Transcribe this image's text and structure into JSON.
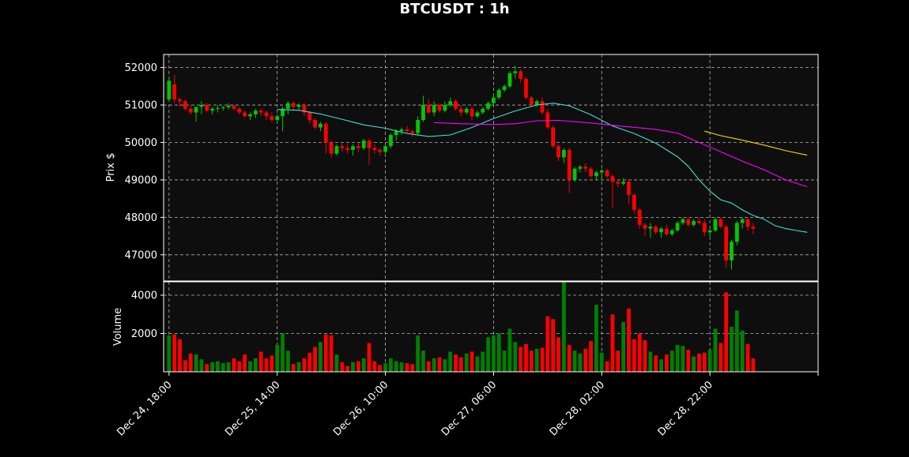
{
  "chart_data": {
    "type": "candlestick",
    "title": "BTCUSDT : 1h",
    "interval": "1h",
    "colors": {
      "up": "#00c800",
      "down": "#ff0000",
      "ma_short": "#40e0d0",
      "ma_mid": "#ff00ff",
      "ma_long": "#ffd700",
      "grid": "#b0b0b0",
      "background": "#0e0e0e"
    },
    "price_panel": {
      "ylabel": "Prix $",
      "ylim": [
        46300,
        52350
      ],
      "yticks": [
        47000,
        48000,
        49000,
        50000,
        51000,
        52000
      ],
      "grid": true
    },
    "volume_panel": {
      "ylabel": "Volume",
      "ylim": [
        0,
        4700
      ],
      "yticks": [
        2000,
        4000
      ],
      "grid": true
    },
    "xlim": [
      -1,
      120
    ],
    "xticks": [
      {
        "index": 0,
        "label": "Dec 24, 18:00"
      },
      {
        "index": 20,
        "label": "Dec 25, 14:00"
      },
      {
        "index": 40,
        "label": "Dec 26, 10:00"
      },
      {
        "index": 60,
        "label": "Dec 27, 06:00"
      },
      {
        "index": 80,
        "label": "Dec 28, 02:00"
      },
      {
        "index": 100,
        "label": "Dec 28, 22:00"
      },
      {
        "index": 120,
        "label": ""
      }
    ],
    "ohlcv": [
      [
        51150,
        51750,
        51100,
        51650,
        1900
      ],
      [
        51550,
        51800,
        51050,
        51150,
        1950
      ],
      [
        51150,
        51200,
        50950,
        51100,
        1700
      ],
      [
        51100,
        51150,
        50850,
        50900,
        600
      ],
      [
        50900,
        51000,
        50750,
        50800,
        950
      ],
      [
        50800,
        50950,
        50550,
        50950,
        900
      ],
      [
        50950,
        51100,
        50750,
        51000,
        650
      ],
      [
        51000,
        51050,
        50800,
        50850,
        400
      ],
      [
        50850,
        50950,
        50750,
        50900,
        500
      ],
      [
        50900,
        51000,
        50800,
        50920,
        550
      ],
      [
        50920,
        50980,
        50850,
        50940,
        450
      ],
      [
        50940,
        51050,
        50880,
        50980,
        500
      ],
      [
        50980,
        51020,
        50850,
        50900,
        700
      ],
      [
        50900,
        50950,
        50750,
        50800,
        550
      ],
      [
        50800,
        50850,
        50650,
        50700,
        900
      ],
      [
        50700,
        50800,
        50600,
        50750,
        550
      ],
      [
        50750,
        50900,
        50650,
        50850,
        700
      ],
      [
        50850,
        50900,
        50700,
        50800,
        1050
      ],
      [
        50800,
        50850,
        50600,
        50700,
        700
      ],
      [
        50700,
        50800,
        50550,
        50600,
        850
      ],
      [
        50600,
        50750,
        50500,
        50700,
        1400
      ],
      [
        50700,
        50950,
        50300,
        50900,
        2000
      ],
      [
        50900,
        51100,
        50750,
        51050,
        1100
      ],
      [
        51050,
        51100,
        50850,
        50950,
        400
      ],
      [
        50950,
        51050,
        50850,
        51000,
        500
      ],
      [
        51000,
        51050,
        50700,
        50800,
        700
      ],
      [
        50800,
        50850,
        50500,
        50600,
        1000
      ],
      [
        50600,
        50650,
        50350,
        50400,
        1300
      ],
      [
        50400,
        50550,
        50300,
        50500,
        1550
      ],
      [
        50500,
        50550,
        49700,
        50000,
        1950
      ],
      [
        50000,
        50050,
        49600,
        49700,
        1900
      ],
      [
        49700,
        49950,
        49650,
        49900,
        900
      ],
      [
        49900,
        49980,
        49750,
        49850,
        500
      ],
      [
        49850,
        49950,
        49700,
        49800,
        300
      ],
      [
        49800,
        49950,
        49650,
        49900,
        500
      ],
      [
        49900,
        50000,
        49750,
        49850,
        550
      ],
      [
        49850,
        50100,
        49800,
        50050,
        700
      ],
      [
        50050,
        50100,
        49400,
        49850,
        1500
      ],
      [
        49850,
        49950,
        49700,
        49800,
        550
      ],
      [
        49800,
        49850,
        49650,
        49750,
        350
      ],
      [
        49750,
        49950,
        49700,
        49900,
        450
      ],
      [
        49900,
        50250,
        49850,
        50200,
        700
      ],
      [
        50200,
        50350,
        50050,
        50300,
        550
      ],
      [
        50300,
        50400,
        50200,
        50350,
        500
      ],
      [
        50350,
        50450,
        50250,
        50300,
        450
      ],
      [
        50300,
        50350,
        50150,
        50250,
        400
      ],
      [
        50250,
        50700,
        50200,
        50600,
        1900
      ],
      [
        50600,
        51250,
        50550,
        51000,
        1100
      ],
      [
        51000,
        51150,
        50750,
        50800,
        550
      ],
      [
        50800,
        51100,
        50700,
        51000,
        700
      ],
      [
        51000,
        51050,
        50800,
        50850,
        750
      ],
      [
        50850,
        51100,
        50800,
        51000,
        650
      ],
      [
        51000,
        51200,
        50950,
        51100,
        1050
      ],
      [
        51100,
        51150,
        50850,
        50900,
        900
      ],
      [
        50900,
        51000,
        50700,
        50800,
        750
      ],
      [
        50800,
        50950,
        50750,
        50900,
        950
      ],
      [
        50900,
        50950,
        50600,
        50700,
        1050
      ],
      [
        50700,
        50850,
        50650,
        50800,
        800
      ],
      [
        50800,
        50950,
        50750,
        50900,
        1050
      ],
      [
        50900,
        51100,
        50850,
        51050,
        1800
      ],
      [
        51050,
        51300,
        51000,
        51200,
        1900
      ],
      [
        51200,
        51450,
        51150,
        51400,
        2000
      ],
      [
        51400,
        51550,
        51350,
        51500,
        1100
      ],
      [
        51500,
        51900,
        51450,
        51850,
        2250
      ],
      [
        51850,
        52050,
        51700,
        51900,
        1550
      ],
      [
        51900,
        51950,
        51600,
        51700,
        1300
      ],
      [
        51700,
        51750,
        51150,
        51200,
        1450
      ],
      [
        51200,
        51250,
        50950,
        51000,
        1100
      ],
      [
        51000,
        51150,
        50950,
        51100,
        1200
      ],
      [
        51100,
        51200,
        50750,
        50800,
        1250
      ],
      [
        50800,
        50900,
        50350,
        50400,
        2900
      ],
      [
        50400,
        50450,
        49850,
        49900,
        2750
      ],
      [
        49900,
        49950,
        49500,
        49600,
        1800
      ],
      [
        49600,
        49850,
        49450,
        49800,
        4700
      ],
      [
        49800,
        49850,
        48650,
        49000,
        1400
      ],
      [
        49000,
        49350,
        48950,
        49300,
        1100
      ],
      [
        49300,
        49400,
        49200,
        49350,
        950
      ],
      [
        49350,
        49450,
        49200,
        49300,
        1200
      ],
      [
        49300,
        49350,
        49050,
        49100,
        1600
      ],
      [
        49100,
        49250,
        49000,
        49200,
        3500
      ],
      [
        49200,
        49300,
        49000,
        49250,
        1000
      ],
      [
        49250,
        49300,
        49050,
        49100,
        550
      ],
      [
        49100,
        49150,
        48250,
        48950,
        3000
      ],
      [
        48950,
        49000,
        48800,
        48900,
        1100
      ],
      [
        48900,
        49050,
        48850,
        48950,
        2600
      ],
      [
        48950,
        49000,
        48350,
        48600,
        3300
      ],
      [
        48600,
        48650,
        48100,
        48200,
        1700
      ],
      [
        48200,
        48250,
        47700,
        47800,
        2000
      ],
      [
        47800,
        47850,
        47500,
        47700,
        1650
      ],
      [
        47700,
        47850,
        47450,
        47750,
        1050
      ],
      [
        47750,
        47800,
        47550,
        47600,
        850
      ],
      [
        47600,
        47750,
        47450,
        47700,
        650
      ],
      [
        47700,
        47800,
        47500,
        47550,
        900
      ],
      [
        47550,
        47700,
        47500,
        47650,
        1100
      ],
      [
        47650,
        47900,
        47600,
        47850,
        1400
      ],
      [
        47850,
        48000,
        47800,
        47950,
        1350
      ],
      [
        47950,
        48000,
        47750,
        47800,
        1150
      ],
      [
        47800,
        47950,
        47750,
        47900,
        800
      ],
      [
        47900,
        48000,
        47800,
        47850,
        950
      ],
      [
        47850,
        47950,
        47500,
        47600,
        1000
      ],
      [
        47600,
        47700,
        47450,
        47650,
        1150
      ],
      [
        47650,
        48000,
        47600,
        47950,
        2250
      ],
      [
        47950,
        48000,
        47700,
        47750,
        1500
      ],
      [
        47750,
        47800,
        46650,
        46850,
        4150
      ],
      [
        46850,
        47400,
        46600,
        47350,
        2350
      ],
      [
        47350,
        47900,
        47250,
        47850,
        3200
      ],
      [
        47850,
        48000,
        47700,
        47950,
        2150
      ],
      [
        47950,
        47980,
        47650,
        47750,
        1450
      ],
      [
        47750,
        47850,
        47550,
        47700,
        700
      ]
    ],
    "moving_averages": [
      {
        "color": "#40e0d0",
        "points": [
          [
            20,
            50880
          ],
          [
            24,
            50860
          ],
          [
            28,
            50760
          ],
          [
            32,
            50620
          ],
          [
            36,
            50470
          ],
          [
            40,
            50380
          ],
          [
            44,
            50240
          ],
          [
            48,
            50160
          ],
          [
            52,
            50200
          ],
          [
            56,
            50400
          ],
          [
            60,
            50640
          ],
          [
            64,
            50840
          ],
          [
            68,
            51000
          ],
          [
            71,
            51050
          ],
          [
            74,
            50980
          ],
          [
            78,
            50740
          ],
          [
            82,
            50440
          ],
          [
            86,
            50240
          ],
          [
            90,
            49980
          ],
          [
            94,
            49620
          ],
          [
            96,
            49360
          ],
          [
            98,
            49000
          ],
          [
            100,
            48700
          ],
          [
            102,
            48470
          ],
          [
            104,
            48380
          ],
          [
            106,
            48200
          ],
          [
            108,
            48050
          ],
          [
            110,
            47950
          ],
          [
            112,
            47780
          ],
          [
            114,
            47700
          ],
          [
            116,
            47650
          ],
          [
            118,
            47600
          ]
        ]
      },
      {
        "color": "#ff00ff",
        "points": [
          [
            49,
            50530
          ],
          [
            54,
            50500
          ],
          [
            60,
            50480
          ],
          [
            64,
            50500
          ],
          [
            68,
            50580
          ],
          [
            72,
            50590
          ],
          [
            78,
            50520
          ],
          [
            84,
            50430
          ],
          [
            90,
            50350
          ],
          [
            94,
            50250
          ],
          [
            98,
            50000
          ],
          [
            102,
            49750
          ],
          [
            106,
            49500
          ],
          [
            110,
            49270
          ],
          [
            114,
            49000
          ],
          [
            118,
            48820
          ]
        ]
      },
      {
        "color": "#ffd700",
        "points": [
          [
            99,
            50300
          ],
          [
            102,
            50180
          ],
          [
            106,
            50060
          ],
          [
            110,
            49930
          ],
          [
            114,
            49780
          ],
          [
            118,
            49660
          ]
        ]
      }
    ]
  }
}
